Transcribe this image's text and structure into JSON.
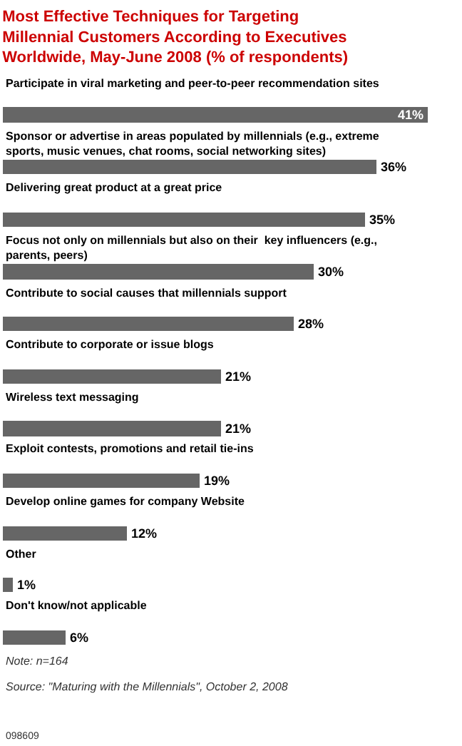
{
  "chart_data": {
    "type": "bar",
    "orientation": "horizontal",
    "title": "Most Effective Techniques for Targeting Millennial Customers According to Executives Worldwide, May-June 2008 (% of respondents)",
    "categories": [
      "Participate in viral marketing and peer-to-peer recommendation sites",
      "Sponsor or advertise in areas populated by millennials (e.g., extreme sports, music venues, chat rooms, social networking sites)",
      "Delivering great product at a great price",
      "Focus not only on millennials but also on their  key influencers (e.g., parents, peers)",
      "Contribute to social causes that millennials support",
      "Contribute to corporate or issue blogs",
      "Wireless text messaging",
      "Exploit contests, promotions and retail tie-ins",
      "Develop online games for company Website",
      "Other",
      "Don't know/not applicable"
    ],
    "values": [
      41,
      36,
      35,
      30,
      28,
      21,
      21,
      19,
      12,
      1,
      6
    ],
    "color": "#666666",
    "value_labels": [
      "41%",
      "36%",
      "35%",
      "30%",
      "28%",
      "21%",
      "21%",
      "19%",
      "12%",
      "1%",
      "6%"
    ],
    "annotations": [
      "Note: n=164",
      "Source: \"Maturing with the Millennials\", October 2, 2008",
      "098609"
    ]
  }
}
